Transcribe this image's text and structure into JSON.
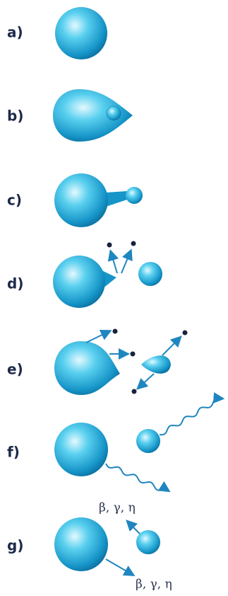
{
  "labels": [
    "a)",
    "b)",
    "c)",
    "d)",
    "e)",
    "f)",
    "g)"
  ],
  "emissions": [
    "β, γ, η",
    "β, γ, η"
  ]
}
